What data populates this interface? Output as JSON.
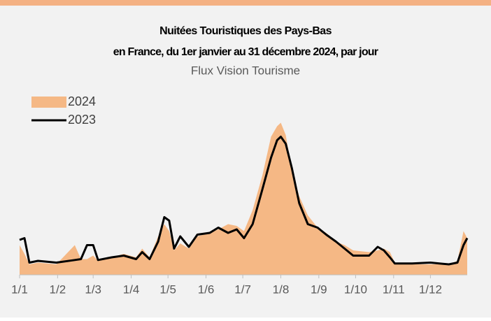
{
  "chart_data": {
    "type": "area-line",
    "title": "Nuitées Touristiques des Pays-Bas",
    "subtitle": "en France, du 1er janvier au 31 décembre 2024, par jour",
    "source": "Flux Vision Tourisme",
    "x": [
      0,
      4,
      8,
      15,
      30,
      45,
      50,
      55,
      60,
      64,
      75,
      85,
      95,
      100,
      106,
      113,
      118,
      122,
      126,
      131,
      138,
      145,
      155,
      162,
      170,
      177,
      183,
      190,
      198,
      205,
      210,
      213,
      217,
      222,
      228,
      235,
      243,
      250,
      258,
      265,
      272,
      285,
      292,
      297,
      302,
      306,
      320,
      335,
      350,
      357,
      362,
      365
    ],
    "series": [
      {
        "name": "2024",
        "color": "#f5b885",
        "style": "area",
        "values": [
          17,
          12,
          6,
          7,
          6,
          17,
          9,
          9,
          11,
          8,
          10,
          12,
          10,
          15,
          10,
          22,
          29,
          25,
          14,
          18,
          15,
          22,
          24,
          26,
          29,
          28,
          25,
          37,
          57,
          79,
          85,
          87,
          80,
          60,
          45,
          34,
          27,
          24,
          19,
          17,
          14,
          13,
          14,
          15,
          13,
          7,
          6,
          6,
          6,
          8,
          25,
          21
        ]
      },
      {
        "name": "2023",
        "color": "#000000",
        "style": "line",
        "values": [
          20,
          21,
          7,
          8,
          7,
          8.5,
          9,
          17,
          17,
          8.5,
          10,
          11,
          9,
          13,
          9,
          19,
          33,
          31,
          15,
          22,
          16,
          23,
          24,
          27,
          24,
          26,
          21,
          29,
          49,
          67,
          77,
          79,
          75,
          61,
          41,
          29,
          27,
          23,
          19,
          15,
          11,
          11,
          16,
          14,
          10,
          6.5,
          6.5,
          7,
          6,
          7,
          17,
          21
        ]
      }
    ],
    "xlim": [
      0,
      365
    ],
    "xticks": [
      {
        "value": 0,
        "label": "1/1"
      },
      {
        "value": 31,
        "label": "1/2"
      },
      {
        "value": 60,
        "label": "1/3"
      },
      {
        "value": 91,
        "label": "1/4"
      },
      {
        "value": 121,
        "label": "1/5"
      },
      {
        "value": 152,
        "label": "1/6"
      },
      {
        "value": 182,
        "label": "1/7"
      },
      {
        "value": 213,
        "label": "1/8"
      },
      {
        "value": 244,
        "label": "1/9"
      },
      {
        "value": 274,
        "label": "1/10"
      },
      {
        "value": 305,
        "label": "1/11"
      },
      {
        "value": 335,
        "label": "1/12"
      }
    ],
    "ylim": [
      0,
      100
    ],
    "legend": "top-left"
  }
}
